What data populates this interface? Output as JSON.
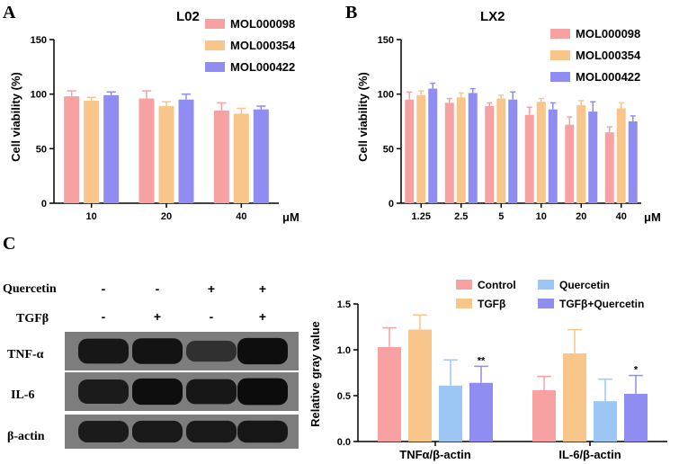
{
  "colors": {
    "MOL000098": "#f7a1a3",
    "MOL000354": "#f8c68a",
    "MOL000422": "#8f8cf2",
    "Control": "#f7a1a3",
    "TGFb": "#f8c68a",
    "Quercetin": "#9cc7f5",
    "TGFbQuercetin": "#8f8cf2"
  },
  "panels": {
    "A": "A",
    "B": "B",
    "C": "C"
  },
  "chart_data": [
    {
      "id": "A",
      "type": "bar",
      "title": "L02",
      "xlabel": "",
      "ylabel": "Cell viability (%)",
      "x_unit": "μM",
      "ylim": [
        0,
        150
      ],
      "yticks": [
        "0",
        "50",
        "100",
        "150"
      ],
      "categories": [
        "10",
        "20",
        "40"
      ],
      "series": [
        {
          "name": "MOL000098",
          "values": [
            98,
            96,
            85
          ],
          "errors": [
            5,
            7,
            7
          ]
        },
        {
          "name": "MOL000354",
          "values": [
            94,
            89,
            82
          ],
          "errors": [
            3,
            4,
            5
          ]
        },
        {
          "name": "MOL000422",
          "values": [
            99,
            95,
            86
          ],
          "errors": [
            3,
            5,
            3
          ]
        }
      ]
    },
    {
      "id": "B",
      "type": "bar",
      "title": "LX2",
      "xlabel": "",
      "ylabel": "Cell viability (%)",
      "x_unit": "μM",
      "ylim": [
        0,
        150
      ],
      "yticks": [
        "0",
        "50",
        "100",
        "150"
      ],
      "categories": [
        "1.25",
        "2.5",
        "5",
        "10",
        "20",
        "40"
      ],
      "series": [
        {
          "name": "MOL000098",
          "values": [
            95,
            92,
            89,
            81,
            72,
            65
          ],
          "errors": [
            7,
            4,
            3,
            7,
            7,
            5
          ]
        },
        {
          "name": "MOL000354",
          "values": [
            99,
            97,
            96,
            93,
            90,
            87
          ],
          "errors": [
            4,
            4,
            3,
            3,
            4,
            5
          ]
        },
        {
          "name": "MOL000422",
          "values": [
            105,
            101,
            95,
            86,
            84,
            75
          ],
          "errors": [
            5,
            4,
            7,
            6,
            9,
            5
          ]
        }
      ]
    },
    {
      "id": "C",
      "type": "bar",
      "title": "",
      "xlabel": "",
      "ylabel": "Relative gray value",
      "ylim": [
        0,
        1.5
      ],
      "yticks": [
        "0.0",
        "0.5",
        "1.0",
        "1.5"
      ],
      "categories": [
        "TNFα/β-actin",
        "IL-6/β-actin"
      ],
      "series": [
        {
          "name": "Control",
          "values": [
            1.03,
            0.56
          ],
          "errors": [
            0.21,
            0.15
          ]
        },
        {
          "name": "TGFβ",
          "values": [
            1.22,
            0.96
          ],
          "errors": [
            0.16,
            0.26
          ]
        },
        {
          "name": "Quercetin",
          "values": [
            0.61,
            0.44
          ],
          "errors": [
            0.28,
            0.24
          ]
        },
        {
          "name": "TGFβ+Quercetin",
          "values": [
            0.64,
            0.52
          ],
          "errors": [
            0.18,
            0.2
          ]
        }
      ],
      "annotations": [
        {
          "category": "TNFα/β-actin",
          "series": "TGFβ+Quercetin",
          "text": "**"
        },
        {
          "category": "IL-6/β-actin",
          "series": "TGFβ+Quercetin",
          "text": "*"
        }
      ]
    }
  ],
  "blot": {
    "treatments": [
      {
        "label": "Quercetin",
        "signs": [
          "-",
          "-",
          "+",
          "+"
        ]
      },
      {
        "label": "TGFβ",
        "signs": [
          "-",
          "+",
          "-",
          "+"
        ]
      }
    ],
    "bands": [
      {
        "label": "TNF-α",
        "intensity": [
          0.85,
          0.9,
          0.55,
          0.95
        ]
      },
      {
        "label": "IL-6",
        "intensity": [
          0.8,
          0.95,
          0.85,
          0.98
        ]
      },
      {
        "label": "β-actin",
        "intensity": [
          0.8,
          0.82,
          0.82,
          0.85
        ]
      }
    ]
  }
}
